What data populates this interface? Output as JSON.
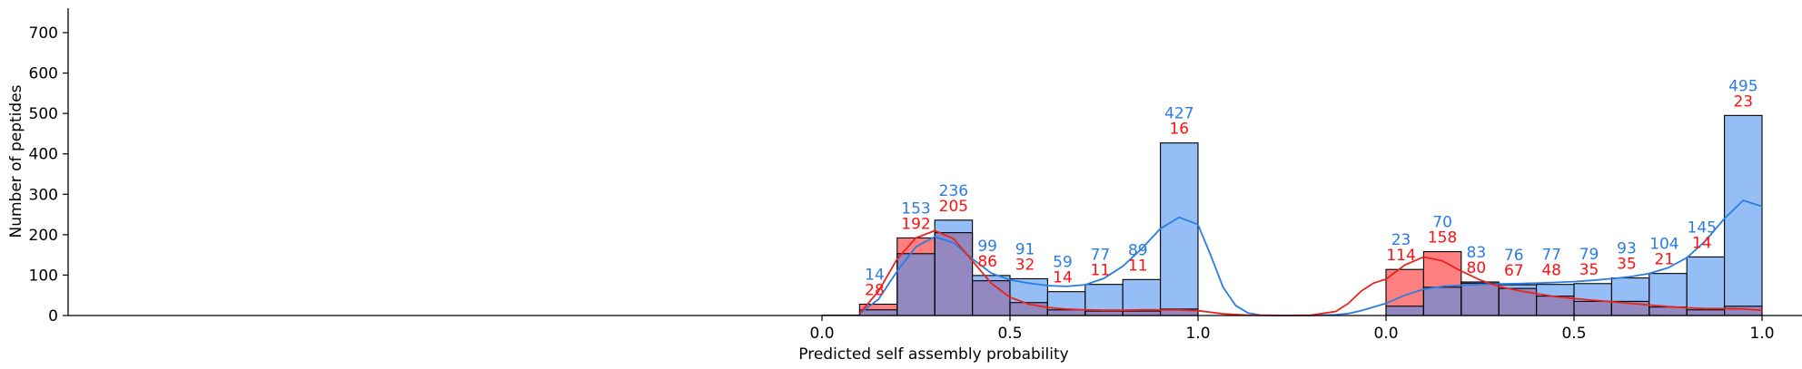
{
  "chart_data": {
    "type": "histogram",
    "xlabel": "Predicted self assembly probability",
    "ylabel": "Number of peptides",
    "ylim": [
      0,
      750
    ],
    "yticks": [
      "0",
      "100",
      "200",
      "300",
      "400",
      "500",
      "600",
      "700"
    ],
    "grid": false,
    "colors": {
      "blue_bar": "#95bdf6",
      "red_bar": "#fd7f7f",
      "overlap_bar": "#9388c0",
      "blue_line": "#2a7de1",
      "red_line": "#e8231e",
      "blue_text": "#2a7de1",
      "red_text": "#ff1010"
    },
    "panels": [
      {
        "name": "left",
        "xlim": [
          0.0,
          1.0
        ],
        "xticks": [
          {
            "value": 0.0,
            "label": "0.0"
          },
          {
            "value": 0.5,
            "label": "0.5"
          },
          {
            "value": 1.0,
            "label": "1.0"
          }
        ],
        "bin_edges": [
          0.1,
          0.2,
          0.3,
          0.4,
          0.5,
          0.6,
          0.7,
          0.8,
          0.9,
          1.0
        ],
        "blue_counts": [
          14,
          153,
          236,
          99,
          91,
          59,
          77,
          89,
          427
        ],
        "red_counts": [
          28,
          192,
          205,
          86,
          32,
          14,
          11,
          11,
          16
        ],
        "labels": [
          {
            "blue": "14",
            "red": "28",
            "x": 0.14
          },
          {
            "blue": "153",
            "red": "192",
            "x": 0.25
          },
          {
            "blue": "236",
            "red": "205",
            "x": 0.35
          },
          {
            "blue": "99",
            "red": "86",
            "x": 0.44
          },
          {
            "blue": "91",
            "red": "32",
            "x": 0.54
          },
          {
            "blue": "59",
            "red": "14",
            "x": 0.64
          },
          {
            "blue": "77",
            "red": "11",
            "x": 0.74
          },
          {
            "blue": "89",
            "red": "11",
            "x": 0.84
          },
          {
            "blue": "427",
            "red": "16",
            "x": 0.95
          }
        ],
        "blue_kde": [
          [
            0.1,
            5
          ],
          [
            0.15,
            40
          ],
          [
            0.2,
            110
          ],
          [
            0.25,
            170
          ],
          [
            0.3,
            195
          ],
          [
            0.35,
            180
          ],
          [
            0.4,
            140
          ],
          [
            0.45,
            105
          ],
          [
            0.5,
            88
          ],
          [
            0.55,
            80
          ],
          [
            0.6,
            74
          ],
          [
            0.65,
            72
          ],
          [
            0.7,
            76
          ],
          [
            0.75,
            92
          ],
          [
            0.8,
            122
          ],
          [
            0.85,
            165
          ],
          [
            0.9,
            215
          ],
          [
            0.95,
            243
          ],
          [
            1.0,
            225
          ]
        ],
        "red_kde": [
          [
            0.1,
            5
          ],
          [
            0.15,
            60
          ],
          [
            0.2,
            140
          ],
          [
            0.25,
            192
          ],
          [
            0.3,
            210
          ],
          [
            0.35,
            190
          ],
          [
            0.4,
            135
          ],
          [
            0.45,
            80
          ],
          [
            0.5,
            45
          ],
          [
            0.55,
            28
          ],
          [
            0.6,
            20
          ],
          [
            0.65,
            16
          ],
          [
            0.7,
            14
          ],
          [
            0.75,
            13
          ],
          [
            0.8,
            13
          ],
          [
            0.85,
            14
          ],
          [
            0.9,
            14
          ],
          [
            0.95,
            14
          ],
          [
            1.0,
            12
          ]
        ]
      },
      {
        "name": "right",
        "xlim": [
          0.0,
          1.0
        ],
        "xticks": [
          {
            "value": 0.0,
            "label": "0.0"
          },
          {
            "value": 0.5,
            "label": "0.5"
          },
          {
            "value": 1.0,
            "label": "1.0"
          }
        ],
        "bin_edges": [
          0.0,
          0.1,
          0.2,
          0.3,
          0.4,
          0.5,
          0.6,
          0.7,
          0.8,
          0.9,
          1.0
        ],
        "blue_counts": [
          23,
          70,
          83,
          76,
          77,
          79,
          93,
          104,
          145,
          495
        ],
        "red_counts": [
          114,
          158,
          80,
          67,
          48,
          35,
          35,
          21,
          14,
          23
        ],
        "labels": [
          {
            "blue": "23",
            "red": "114",
            "x": 0.04
          },
          {
            "blue": "70",
            "red": "158",
            "x": 0.15
          },
          {
            "blue": "83",
            "red": "80",
            "x": 0.24
          },
          {
            "blue": "76",
            "red": "67",
            "x": 0.34
          },
          {
            "blue": "77",
            "red": "48",
            "x": 0.44
          },
          {
            "blue": "79",
            "red": "35",
            "x": 0.54
          },
          {
            "blue": "93",
            "red": "35",
            "x": 0.64
          },
          {
            "blue": "104",
            "red": "21",
            "x": 0.74
          },
          {
            "blue": "145",
            "red": "14",
            "x": 0.84
          },
          {
            "blue": "495",
            "red": "23",
            "x": 0.95
          }
        ],
        "blue_kde": [
          [
            0.0,
            30
          ],
          [
            0.05,
            50
          ],
          [
            0.1,
            65
          ],
          [
            0.15,
            72
          ],
          [
            0.2,
            75
          ],
          [
            0.25,
            77
          ],
          [
            0.3,
            78
          ],
          [
            0.35,
            79
          ],
          [
            0.4,
            80
          ],
          [
            0.45,
            82
          ],
          [
            0.5,
            84
          ],
          [
            0.55,
            87
          ],
          [
            0.6,
            91
          ],
          [
            0.65,
            96
          ],
          [
            0.7,
            104
          ],
          [
            0.75,
            118
          ],
          [
            0.8,
            143
          ],
          [
            0.85,
            185
          ],
          [
            0.9,
            240
          ],
          [
            0.95,
            285
          ],
          [
            1.0,
            270
          ]
        ],
        "red_kde": [
          [
            0.0,
            90
          ],
          [
            0.05,
            125
          ],
          [
            0.1,
            145
          ],
          [
            0.15,
            135
          ],
          [
            0.2,
            110
          ],
          [
            0.25,
            88
          ],
          [
            0.3,
            72
          ],
          [
            0.35,
            62
          ],
          [
            0.4,
            54
          ],
          [
            0.45,
            47
          ],
          [
            0.5,
            42
          ],
          [
            0.55,
            38
          ],
          [
            0.6,
            34
          ],
          [
            0.65,
            30
          ],
          [
            0.7,
            26
          ],
          [
            0.75,
            22
          ],
          [
            0.8,
            19
          ],
          [
            0.85,
            17
          ],
          [
            0.9,
            17
          ],
          [
            0.95,
            16
          ],
          [
            1.0,
            13
          ]
        ]
      }
    ],
    "gap_curves": {
      "blue": [
        [
          1.0,
          225
        ],
        [
          1.05,
          150
        ],
        [
          1.1,
          70
        ],
        [
          1.15,
          25
        ],
        [
          1.2,
          6
        ],
        [
          1.25,
          1
        ],
        [
          1.35,
          0
        ],
        [
          1.45,
          0
        ],
        [
          1.55,
          2
        ],
        [
          1.6,
          5
        ],
        [
          1.65,
          12
        ],
        [
          1.7,
          21
        ],
        [
          1.75,
          30
        ]
      ],
      "red": [
        [
          1.0,
          12
        ],
        [
          1.05,
          8
        ],
        [
          1.1,
          4
        ],
        [
          1.2,
          1
        ],
        [
          1.35,
          0
        ],
        [
          1.45,
          1
        ],
        [
          1.55,
          10
        ],
        [
          1.6,
          30
        ],
        [
          1.65,
          60
        ],
        [
          1.7,
          80
        ],
        [
          1.75,
          90
        ]
      ]
    }
  }
}
